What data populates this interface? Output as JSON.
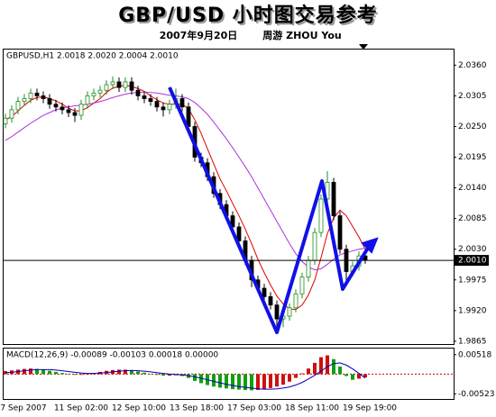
{
  "header": {
    "title": "GBP/USD 小时图交易参考",
    "date": "2007年9月20日",
    "author": "周游 ZHOU You"
  },
  "chart_data": [
    {
      "type": "candlestick",
      "info": "GBPUSD,H1 2.0018 2.0020 2.0004 2.0010",
      "open": [
        2.0255,
        2.0265,
        2.028,
        2.0295,
        2.03,
        2.031,
        2.0305,
        2.03,
        2.029,
        2.0285,
        2.028,
        2.0275,
        2.027,
        2.029,
        2.0305,
        2.031,
        2.0315,
        2.0325,
        2.033,
        2.032,
        2.033,
        2.0315,
        2.0305,
        2.03,
        2.0295,
        2.0285,
        2.028,
        2.029,
        2.03,
        2.0285,
        2.025,
        2.0195,
        2.0185,
        2.016,
        2.013,
        2.011,
        2.009,
        2.007,
        2.0045,
        2.001,
        1.9975,
        1.996,
        1.9945,
        1.993,
        1.9905,
        1.991,
        1.9925,
        1.995,
        1.998,
        2.001,
        2.006,
        2.012,
        2.015,
        2.009,
        2.003,
        1.999,
        2.0,
        2.0018
      ],
      "high": [
        2.0273,
        2.0288,
        2.0303,
        2.0308,
        2.0318,
        2.0318,
        2.0313,
        2.0308,
        2.0298,
        2.0293,
        2.0288,
        2.0283,
        2.0298,
        2.0313,
        2.0318,
        2.0323,
        2.0333,
        2.034,
        2.0338,
        2.0338,
        2.0338,
        2.0323,
        2.0313,
        2.0308,
        2.0303,
        2.0293,
        2.0298,
        2.0318,
        2.0308,
        2.0293,
        2.0258,
        2.0203,
        2.0193,
        2.0168,
        2.0138,
        2.0118,
        2.0098,
        2.0078,
        2.0053,
        2.0018,
        1.9983,
        1.9968,
        1.9953,
        1.9938,
        1.9918,
        1.9933,
        1.9958,
        1.9988,
        2.0018,
        2.0068,
        2.0128,
        2.017,
        2.0158,
        2.0098,
        2.0038,
        2.0008,
        2.0026,
        2.002
      ],
      "low": [
        2.0247,
        2.0257,
        2.0272,
        2.0287,
        2.0292,
        2.0297,
        2.0292,
        2.0282,
        2.0277,
        2.0272,
        2.0267,
        2.0258,
        2.0262,
        2.0282,
        2.0297,
        2.0302,
        2.0307,
        2.0317,
        2.0312,
        2.0312,
        2.0307,
        2.0297,
        2.0292,
        2.0287,
        2.0277,
        2.0268,
        2.0272,
        2.0282,
        2.0277,
        2.0242,
        2.0187,
        2.0177,
        2.0152,
        2.0122,
        2.0102,
        2.0082,
        2.0062,
        2.0037,
        2.0002,
        1.9962,
        1.9952,
        1.9937,
        1.9922,
        1.9888,
        1.989,
        1.9902,
        1.9917,
        1.9942,
        1.9972,
        2.0002,
        2.0052,
        2.0112,
        2.0082,
        2.0022,
        1.9965,
        1.9982,
        1.9992,
        2.0004
      ],
      "close": [
        2.0265,
        2.028,
        2.0295,
        2.03,
        2.031,
        2.0305,
        2.03,
        2.029,
        2.0285,
        2.028,
        2.0275,
        2.027,
        2.029,
        2.0305,
        2.031,
        2.0315,
        2.0325,
        2.033,
        2.032,
        2.033,
        2.0315,
        2.0305,
        2.03,
        2.0295,
        2.0285,
        2.028,
        2.029,
        2.03,
        2.0285,
        2.025,
        2.0195,
        2.0185,
        2.016,
        2.013,
        2.011,
        2.009,
        2.007,
        2.0045,
        2.001,
        1.9975,
        1.996,
        1.9945,
        1.993,
        1.9905,
        1.991,
        1.9925,
        1.995,
        1.998,
        2.001,
        2.006,
        2.012,
        2.015,
        2.009,
        2.003,
        1.999,
        2.0,
        2.0018,
        2.001
      ],
      "up_color": "#1f8f1f",
      "down_color": "#000000",
      "moving_averages": [
        {
          "color": "#e00000",
          "values": [
            2.0262,
            2.0268,
            2.0278,
            2.0288,
            2.0297,
            2.0302,
            2.0303,
            2.03,
            2.0296,
            2.029,
            2.0283,
            2.0278,
            2.0278,
            2.0284,
            2.0292,
            2.03,
            2.0311,
            2.0319,
            2.0322,
            2.0324,
            2.0322,
            2.0318,
            2.0313,
            2.0305,
            2.0298,
            2.0292,
            2.029,
            2.029,
            2.029,
            2.0282,
            2.0262,
            2.0238,
            2.021,
            2.0183,
            2.0156,
            2.0135,
            2.0112,
            2.009,
            2.0066,
            2.004,
            2.0012,
            1.9988,
            1.9966,
            1.9946,
            1.9932,
            1.9923,
            1.9922,
            1.993,
            1.9948,
            1.9975,
            2.0015,
            2.0058,
            2.0086,
            2.01,
            2.009,
            2.0071,
            2.0052,
            2.003
          ]
        },
        {
          "color": "#b030e0",
          "values": [
            2.0225,
            2.0232,
            2.024,
            2.0248,
            2.0256,
            2.0263,
            2.027,
            2.0275,
            2.028,
            2.0283,
            2.0285,
            2.0287,
            2.0288,
            2.029,
            2.0292,
            2.0295,
            2.0298,
            2.0302,
            2.0305,
            2.0308,
            2.031,
            2.0311,
            2.0312,
            2.0311,
            2.031,
            2.0308,
            2.0306,
            2.0305,
            2.0303,
            2.03,
            2.0293,
            2.0283,
            2.0272,
            2.0258,
            2.0243,
            2.0228,
            2.0212,
            2.0195,
            2.0178,
            2.016,
            2.014,
            2.012,
            2.01,
            2.008,
            2.006,
            2.004,
            2.0022,
            2.0008,
            1.9998,
            1.9993,
            1.9995,
            2.0003,
            2.0012,
            2.002,
            2.0024,
            2.0027,
            2.003,
            2.0032
          ]
        }
      ],
      "ylim": [
        1.986,
        2.0388
      ],
      "yticks": [
        {
          "value": 2.036,
          "label": "2.0360"
        },
        2.0305,
        {
          "value": 2.025,
          "label": "2.0250"
        },
        2.0195,
        {
          "value": 2.014,
          "label": "2.0140"
        },
        2.0085,
        {
          "value": 2.003,
          "label": "2.0030"
        },
        1.9975,
        {
          "value": 1.992,
          "label": "1.9920"
        },
        1.9865
      ],
      "current_price": {
        "value": 2.001,
        "label": "2.0010"
      },
      "x_labels": [
        "7 Sep 2007",
        "11 Sep 02:00",
        "12 Sep 10:00",
        "13 Sep 18:00",
        "17 Sep 03:00",
        "18 Sep 11:00",
        "19 Sep 19:00"
      ]
    },
    {
      "type": "macd",
      "label": "MACD(12,26,9) -0.00089 -0.00103 0.00018 0.00000",
      "histogram": {
        "up_color": "#d01010",
        "down_color": "#10a010",
        "values": [
          0.0008,
          0.001,
          0.0012,
          0.0014,
          0.0015,
          0.0014,
          0.0012,
          0.0009,
          0.0006,
          0.0003,
          0.0,
          -0.0002,
          -0.0002,
          0.0,
          0.0003,
          0.0006,
          0.0009,
          0.0011,
          0.0012,
          0.0012,
          0.001,
          0.0007,
          0.0004,
          0.0001,
          -0.0002,
          -0.0004,
          -0.0004,
          -0.0003,
          -0.0005,
          -0.001,
          -0.0018,
          -0.0024,
          -0.0029,
          -0.0033,
          -0.0036,
          -0.0038,
          -0.004,
          -0.0041,
          -0.0042,
          -0.0043,
          -0.0042,
          -0.004,
          -0.0037,
          -0.0033,
          -0.0028,
          -0.002,
          -0.001,
          0.0002,
          0.0015,
          0.003,
          0.0045,
          0.005,
          0.004,
          0.002,
          -0.0005,
          -0.0015,
          -0.0012,
          -0.00089
        ]
      },
      "signal": {
        "color": "#0000b0",
        "values": [
          0.0004,
          0.0005,
          0.0007,
          0.0009,
          0.0011,
          0.0012,
          0.0012,
          0.0012,
          0.0011,
          0.0009,
          0.0007,
          0.0005,
          0.0003,
          0.0002,
          0.0002,
          0.0003,
          0.0004,
          0.0006,
          0.0008,
          0.0009,
          0.001,
          0.0009,
          0.0008,
          0.0006,
          0.0004,
          0.0002,
          0.0,
          -0.0001,
          -0.0002,
          -0.0004,
          -0.0007,
          -0.0011,
          -0.0015,
          -0.0019,
          -0.0023,
          -0.0027,
          -0.003,
          -0.0033,
          -0.0035,
          -0.0037,
          -0.0039,
          -0.004,
          -0.004,
          -0.0039,
          -0.0037,
          -0.0034,
          -0.0029,
          -0.0022,
          -0.0013,
          -0.0003,
          0.0008,
          0.002,
          0.0028,
          0.003,
          0.0024,
          0.0014,
          0.0002,
          -0.00103
        ]
      },
      "ylim": [
        -0.0066,
        0.0068
      ],
      "yticks": [
        0.00518,
        -0.00523
      ]
    }
  ]
}
